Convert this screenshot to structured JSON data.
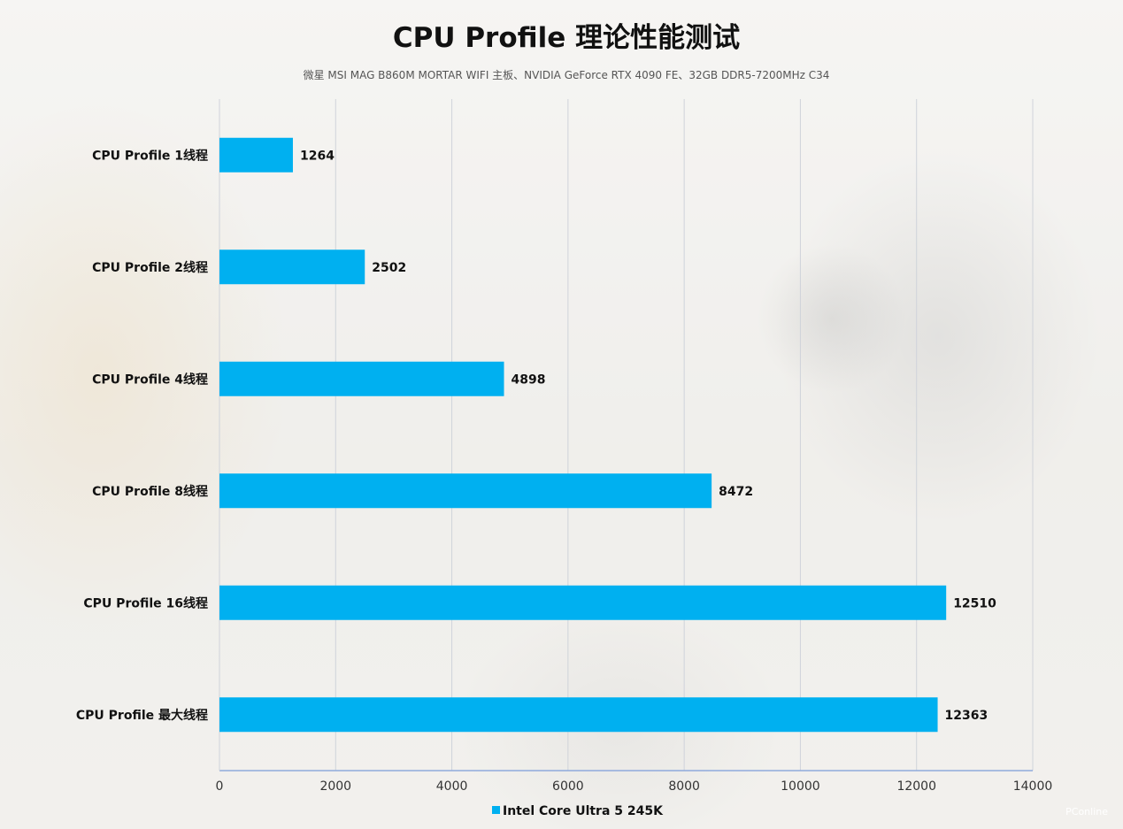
{
  "chart_data": {
    "type": "bar",
    "orientation": "horizontal",
    "title": "CPU Profile 理论性能测试",
    "subtitle": "微星 MSI MAG B860M MORTAR WIFI 主板、NVIDIA GeForce RTX 4090 FE、32GB DDR5-7200MHz C34",
    "categories": [
      "CPU Profile 1线程",
      "CPU Profile 2线程",
      "CPU Profile 4线程",
      "CPU Profile 8线程",
      "CPU Profile 16线程",
      "CPU Profile 最大线程"
    ],
    "series": [
      {
        "name": "Intel Core Ultra 5 245K",
        "values": [
          1264,
          2502,
          4898,
          8472,
          12510,
          12363
        ],
        "color": "#00b0f0"
      }
    ],
    "xlim": [
      0,
      14000
    ],
    "xticks": [
      0,
      2000,
      4000,
      6000,
      8000,
      10000,
      12000,
      14000
    ],
    "grid": true,
    "legend_position": "bottom"
  },
  "watermark": "PConline",
  "colors": {
    "bar": "#00b0f0",
    "grid": "#cfd3da",
    "axis": "#8faadc"
  }
}
